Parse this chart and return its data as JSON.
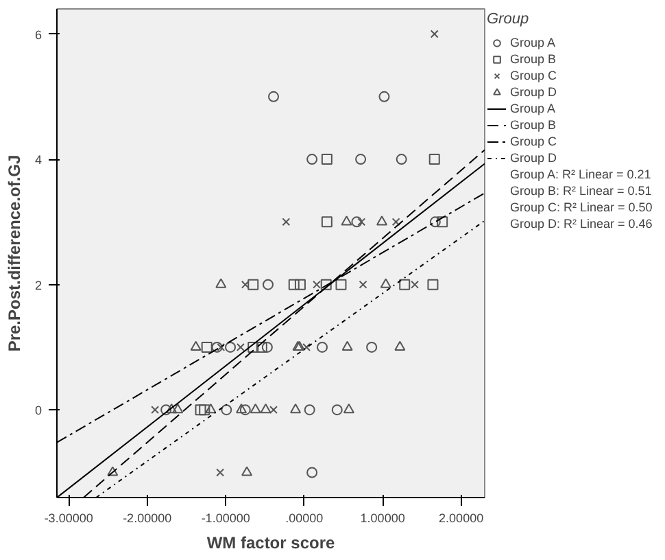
{
  "chart_data": {
    "type": "scatter",
    "xlabel": "WM factor score",
    "ylabel": "Pre.Post.difference.of.GJ",
    "legend_title": "Group",
    "legend": "right",
    "grid": false,
    "xlim": [
      -3.15,
      2.3
    ],
    "ylim": [
      -1.4,
      6.4
    ],
    "xticks": [
      {
        "value": -3,
        "label": "-3.00000"
      },
      {
        "value": -2,
        "label": "-2.00000"
      },
      {
        "value": -1,
        "label": "-1.00000"
      },
      {
        "value": 0,
        "label": ".00000"
      },
      {
        "value": 1,
        "label": "1.00000"
      },
      {
        "value": 2,
        "label": "2.00000"
      }
    ],
    "yticks": [
      0,
      2,
      4,
      6
    ],
    "annotations": [
      "Group A: R² Linear = 0.21",
      "Group B: R² Linear = 0.51",
      "Group C: R² Linear = 0.50",
      "Group D: R² Linear = 0.46"
    ],
    "series": [
      {
        "name": "Group A",
        "type": "scatter",
        "marker": "circle",
        "color": "#555555",
        "x": [
          -0.39,
          1.02,
          0.1,
          0.72,
          1.24,
          0.67,
          1.67,
          -0.46,
          -1.11,
          -0.94,
          -0.47,
          0.23,
          0.86,
          -1.76,
          -0.99,
          -0.75,
          0.07,
          0.42,
          0.1
        ],
        "values": [
          5,
          5,
          4,
          4,
          4,
          3,
          3,
          2,
          1,
          1,
          1,
          1,
          1,
          0,
          0,
          0,
          0,
          0,
          -1
        ]
      },
      {
        "name": "Group B",
        "type": "scatter",
        "marker": "square",
        "color": "#555555",
        "x": [
          0.29,
          1.66,
          0.29,
          1.76,
          -0.65,
          -0.13,
          -0.05,
          0.28,
          0.47,
          1.28,
          1.64,
          -1.24,
          -0.65,
          -0.54,
          -1.32,
          -1.27
        ],
        "values": [
          4,
          4,
          3,
          3,
          2,
          2,
          2,
          2,
          2,
          2,
          2,
          1,
          1,
          1,
          0,
          0
        ]
      },
      {
        "name": "Group C",
        "type": "scatter",
        "marker": "x",
        "color": "#555555",
        "x": [
          1.66,
          -0.23,
          0.73,
          1.17,
          -0.75,
          0.16,
          0.75,
          1.41,
          -1.06,
          -0.81,
          0.03,
          -1.9,
          -0.39,
          -1.07
        ],
        "values": [
          6,
          3,
          3,
          3,
          2,
          2,
          2,
          2,
          1,
          1,
          1,
          0,
          0,
          -1
        ]
      },
      {
        "name": "Group D",
        "type": "scatter",
        "marker": "triangle",
        "color": "#555555",
        "x": [
          0.54,
          0.99,
          -1.06,
          1.04,
          -1.38,
          -0.08,
          -0.06,
          0.55,
          1.22,
          -1.69,
          -1.61,
          -1.19,
          -0.8,
          -0.62,
          -0.49,
          -0.11,
          0.57,
          -2.44,
          -0.73
        ],
        "values": [
          3,
          3,
          2,
          2,
          1,
          1,
          1,
          1,
          1,
          0,
          0,
          0,
          0,
          0,
          0,
          0,
          0,
          -1,
          -1
        ]
      },
      {
        "name": "Group A",
        "type": "line",
        "line_style": "solid",
        "color": "#000000",
        "x": [
          -3.14,
          2.3
        ],
        "values": [
          -1.39,
          3.93
        ]
      },
      {
        "name": "Group B",
        "type": "line",
        "line_style": "dashed",
        "color": "#000000",
        "x": [
          -2.81,
          2.3
        ],
        "values": [
          -1.4,
          4.15
        ]
      },
      {
        "name": "Group C",
        "type": "line",
        "line_style": "dashdot",
        "color": "#000000",
        "x": [
          -3.15,
          2.3
        ],
        "values": [
          -0.52,
          3.46
        ]
      },
      {
        "name": "Group D",
        "type": "line",
        "line_style": "dotdash",
        "color": "#000000",
        "x": [
          -2.65,
          2.3
        ],
        "values": [
          -1.4,
          3.02
        ]
      }
    ]
  }
}
